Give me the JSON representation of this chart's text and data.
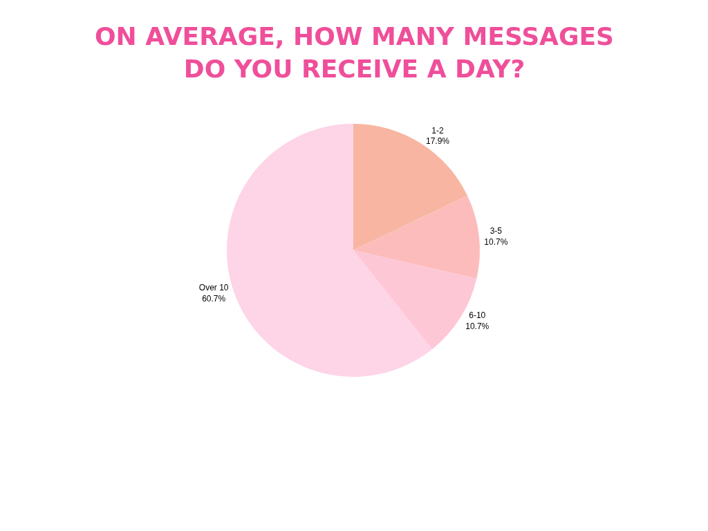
{
  "chart_data": {
    "type": "pie",
    "title": "ON AVERAGE, HOW MANY MESSAGES\nDO YOU RECEIVE A DAY?",
    "categories": [
      "1-2",
      "3-5",
      "6-10",
      "Over 10"
    ],
    "values": [
      17.9,
      10.7,
      10.7,
      60.7
    ],
    "value_labels": [
      "17.9%",
      "10.7%",
      "10.7%",
      "60.7%"
    ],
    "colors": [
      "#f8b6a2",
      "#fdbcbc",
      "#fec7d5",
      "#fed4e7"
    ],
    "legend": false
  }
}
